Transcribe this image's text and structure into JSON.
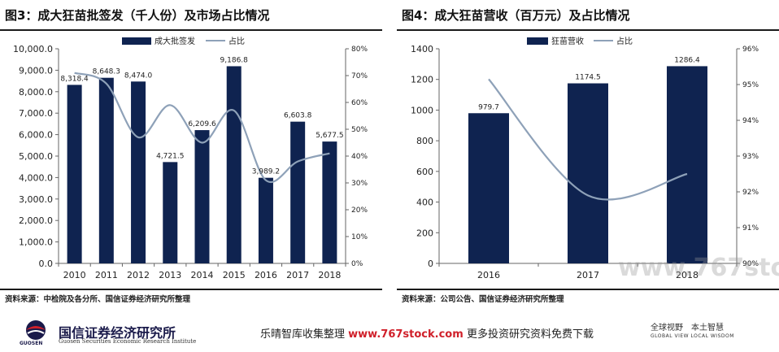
{
  "left_panel": {
    "title": "图3：成大狂苗批签发（千人份）及市场占比情况",
    "source": "资料来源：中检院及各分所、国信证券经济研究所整理"
  },
  "right_panel": {
    "title": "图4：成大狂苗营收（百万元）及占比情况",
    "source": "资料来源：公司公告、国信证券经济研究所整理"
  },
  "footer": {
    "logo_name": "国信证券经济研究所",
    "logo_sub": "Guosen Securities Economic Research Institute",
    "logo_abbr": "GUOSEN",
    "promo_prefix": "乐晴智库收集整理",
    "promo_url": "www.767stock.com",
    "promo_suffix": "更多投资研究资料免费下载",
    "slogan": "全球视野　本土智慧",
    "slogan_sub": "GLOBAL VIEW  LOCAL WISDOM"
  },
  "watermark": "www.767stock.com",
  "colors": {
    "bar": "#0f2350",
    "line": "#8ea1b8"
  },
  "chart_data": [
    {
      "type": "bar+line",
      "categories": [
        "2010",
        "2011",
        "2012",
        "2013",
        "2014",
        "2015",
        "2016",
        "2017",
        "2018"
      ],
      "series": [
        {
          "name": "成大批签发",
          "axis": "left",
          "values": [
            8318.4,
            8648.3,
            8474.0,
            4721.5,
            6209.6,
            9186.8,
            3989.2,
            6603.8,
            5677.5
          ],
          "labels": [
            "8,318.4",
            "8,648.3",
            "8,474.0",
            "4,721.5",
            "6,209.6",
            "9,186.8",
            "3,989.2",
            "6,603.8",
            "5,677.5"
          ]
        },
        {
          "name": "占比",
          "axis": "right",
          "values": [
            71,
            67,
            47,
            59,
            45,
            57,
            31,
            38,
            41
          ]
        }
      ],
      "ylim_left": [
        0,
        10000
      ],
      "ylim_right": [
        0,
        80
      ],
      "yticks_left": [
        "0.0",
        "1,000.0",
        "2,000.0",
        "3,000.0",
        "4,000.0",
        "5,000.0",
        "6,000.0",
        "7,000.0",
        "8,000.0",
        "9,000.0",
        "10,000.0"
      ],
      "yticks_right": [
        "0%",
        "10%",
        "20%",
        "30%",
        "40%",
        "50%",
        "60%",
        "70%",
        "80%"
      ],
      "legend": "top-center"
    },
    {
      "type": "bar+line",
      "categories": [
        "2016",
        "2017",
        "2018"
      ],
      "series": [
        {
          "name": "狂苗营收",
          "axis": "left",
          "values": [
            979.7,
            1174.5,
            1286.4
          ],
          "labels": [
            "979.7",
            "1174.5",
            "1286.4"
          ]
        },
        {
          "name": "占比",
          "axis": "right",
          "values": [
            95.15,
            91.9,
            92.5
          ]
        }
      ],
      "ylim_left": [
        0,
        1400
      ],
      "ylim_right": [
        90,
        96
      ],
      "yticks_left": [
        "0",
        "200",
        "400",
        "600",
        "800",
        "1000",
        "1200",
        "1400"
      ],
      "yticks_right": [
        "90%",
        "91%",
        "92%",
        "93%",
        "94%",
        "95%",
        "96%"
      ],
      "legend": "top-center"
    }
  ]
}
